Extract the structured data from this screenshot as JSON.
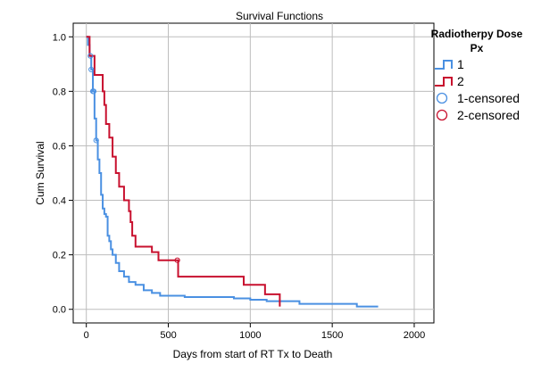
{
  "chart_data": {
    "type": "line",
    "title": "Survival Functions",
    "xlabel": "Days from start of RT Tx to Death",
    "ylabel": "Cum Survival",
    "xlim": [
      -80,
      2120
    ],
    "ylim": [
      -0.05,
      1.05
    ],
    "xticks": [
      0,
      500,
      1000,
      1500,
      2000
    ],
    "yticks": [
      0.0,
      0.2,
      0.4,
      0.6,
      0.8,
      1.0
    ],
    "xtick_labels": [
      "0",
      "500",
      "1000",
      "1500",
      "2000"
    ],
    "ytick_labels": [
      "0.0",
      "0.2",
      "0.4",
      "0.6",
      "0.8",
      "1.0"
    ],
    "grid": true,
    "legend": {
      "title_line1": "Radiotherpy Dose",
      "title_line2": "Px",
      "placement": "right",
      "entries": [
        "1",
        "2",
        "1-censored",
        "2-censored"
      ]
    },
    "series": [
      {
        "name": "1",
        "color": "#4a90e2",
        "style": "step",
        "points": [
          [
            0,
            1.0
          ],
          [
            10,
            0.97
          ],
          [
            20,
            0.93
          ],
          [
            30,
            0.88
          ],
          [
            40,
            0.8
          ],
          [
            50,
            0.7
          ],
          [
            60,
            0.62
          ],
          [
            70,
            0.55
          ],
          [
            80,
            0.5
          ],
          [
            90,
            0.42
          ],
          [
            100,
            0.37
          ],
          [
            110,
            0.35
          ],
          [
            120,
            0.34
          ],
          [
            130,
            0.27
          ],
          [
            140,
            0.25
          ],
          [
            150,
            0.22
          ],
          [
            160,
            0.2
          ],
          [
            180,
            0.17
          ],
          [
            200,
            0.14
          ],
          [
            230,
            0.12
          ],
          [
            260,
            0.1
          ],
          [
            300,
            0.09
          ],
          [
            350,
            0.07
          ],
          [
            400,
            0.06
          ],
          [
            450,
            0.05
          ],
          [
            600,
            0.045
          ],
          [
            900,
            0.04
          ],
          [
            1000,
            0.035
          ],
          [
            1100,
            0.03
          ],
          [
            1300,
            0.02
          ],
          [
            1650,
            0.01
          ],
          [
            1780,
            0.01
          ]
        ],
        "censored_x": [
          25,
          30,
          40,
          45,
          60
        ]
      },
      {
        "name": "2",
        "color": "#c8102e",
        "style": "step",
        "points": [
          [
            0,
            1.0
          ],
          [
            20,
            0.93
          ],
          [
            50,
            0.86
          ],
          [
            100,
            0.8
          ],
          [
            110,
            0.75
          ],
          [
            120,
            0.68
          ],
          [
            140,
            0.63
          ],
          [
            160,
            0.56
          ],
          [
            180,
            0.5
          ],
          [
            200,
            0.45
          ],
          [
            230,
            0.4
          ],
          [
            260,
            0.36
          ],
          [
            270,
            0.32
          ],
          [
            280,
            0.27
          ],
          [
            300,
            0.23
          ],
          [
            400,
            0.21
          ],
          [
            440,
            0.18
          ],
          [
            560,
            0.12
          ],
          [
            960,
            0.09
          ],
          [
            1090,
            0.055
          ],
          [
            1180,
            0.01
          ]
        ],
        "censored_x": [
          555
        ]
      }
    ]
  }
}
